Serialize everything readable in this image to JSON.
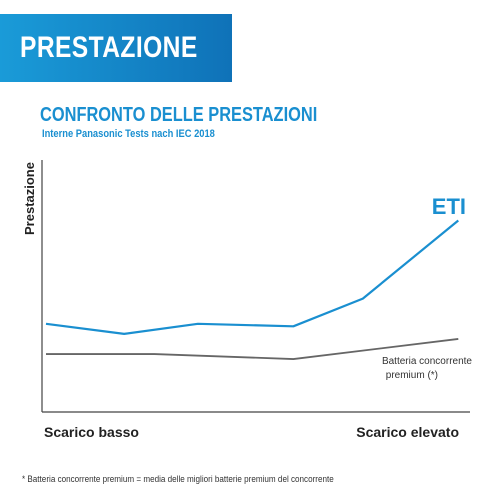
{
  "banner": {
    "title": "PRESTAZIONE"
  },
  "chart_data": {
    "type": "line",
    "title": "CONFRONTO DELLE PRESTAZIONI",
    "subtitle": "Interne Panasonic Tests nach IEC 2018",
    "ylabel": "Prestazione",
    "x_tick_labels": [
      "Scarico basso",
      "Scarico elevato"
    ],
    "xlim": [
      0,
      1
    ],
    "ylim": [
      0,
      1
    ],
    "grid": false,
    "series": [
      {
        "name": "ETI",
        "color": "#1a8fd0",
        "points": [
          [
            0.0,
            0.35
          ],
          [
            0.18,
            0.31
          ],
          [
            0.35,
            0.35
          ],
          [
            0.57,
            0.34
          ],
          [
            0.73,
            0.45
          ],
          [
            0.95,
            0.76
          ]
        ]
      },
      {
        "name": "Batteria concorrente premium (*)",
        "color": "#666666",
        "points": [
          [
            0.0,
            0.23
          ],
          [
            0.25,
            0.23
          ],
          [
            0.57,
            0.21
          ],
          [
            0.95,
            0.29
          ]
        ]
      }
    ]
  },
  "footnote": "* Batteria concorrente premium = media delle migliori batterie premium del concorrente"
}
